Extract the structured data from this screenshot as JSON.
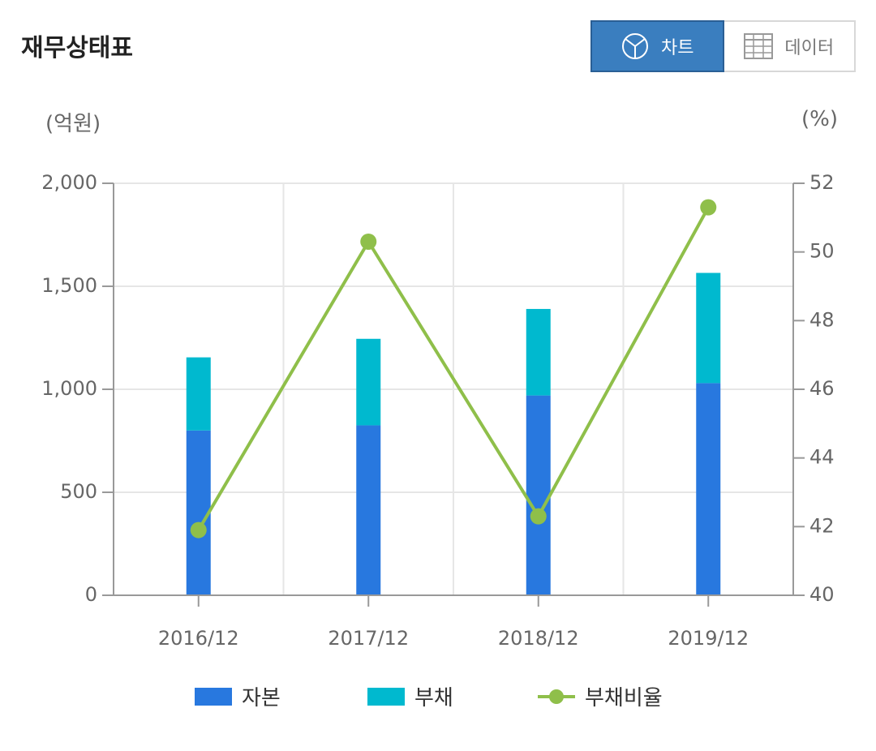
{
  "header": {
    "title": "재무상태표"
  },
  "toggle": {
    "chart_label": "차트",
    "data_label": "데이터",
    "active": "chart"
  },
  "units": {
    "left": "(억원)",
    "right": "(%)"
  },
  "colors": {
    "capital": "#2878df",
    "debt": "#00b9cf",
    "ratio": "#8fbf4a",
    "grid": "#e6e6e6",
    "axis": "#999999"
  },
  "chart_data": {
    "type": "bar",
    "categories": [
      "2016/12",
      "2017/12",
      "2018/12",
      "2019/12"
    ],
    "series": [
      {
        "name": "자본",
        "kind": "stacked-bar",
        "axis": "left",
        "values": [
          800,
          825,
          970,
          1030
        ]
      },
      {
        "name": "부채",
        "kind": "stacked-bar",
        "axis": "left",
        "values": [
          355,
          420,
          420,
          535
        ]
      },
      {
        "name": "부채비율",
        "kind": "line",
        "axis": "right",
        "values": [
          41.9,
          50.3,
          42.3,
          51.3
        ]
      }
    ],
    "ylim_left": [
      0,
      2000
    ],
    "yticks_left": [
      "0",
      "500",
      "1,000",
      "1,500",
      "2,000"
    ],
    "ylim_right": [
      40,
      52
    ],
    "yticks_right": [
      "40",
      "42",
      "44",
      "46",
      "48",
      "50",
      "52"
    ],
    "legend": [
      "자본",
      "부채",
      "부채비율"
    ],
    "legend_position": "bottom",
    "grid": true
  }
}
